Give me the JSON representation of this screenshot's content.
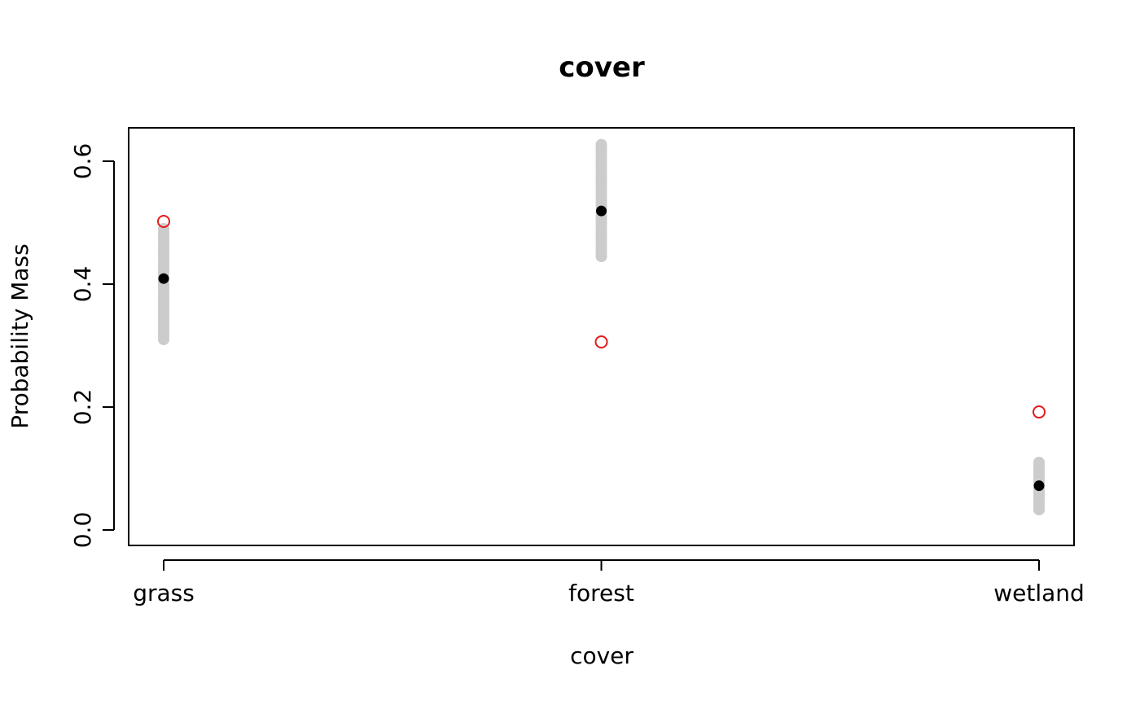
{
  "chart_data": {
    "type": "scatter",
    "title": "cover",
    "xlabel": "cover",
    "ylabel": "Probability Mass",
    "categories": [
      "grass",
      "forest",
      "wetland"
    ],
    "ylim": [
      0.0,
      0.65
    ],
    "yticks": [
      "0.0",
      "0.2",
      "0.4",
      "0.6"
    ],
    "grid": false,
    "legend": "none",
    "series": [
      {
        "role": "simulated",
        "color": "#cccccc",
        "ranges": [
          {
            "category": "grass",
            "min": 0.31,
            "max": 0.49
          },
          {
            "category": "forest",
            "min": 0.445,
            "max": 0.627
          },
          {
            "category": "wetland",
            "min": 0.033,
            "max": 0.11
          }
        ]
      },
      {
        "role": "mean",
        "color": "#000000",
        "values": [
          0.409,
          0.519,
          0.072
        ]
      },
      {
        "role": "observed",
        "color": "#e41a1c",
        "values": [
          0.502,
          0.306,
          0.192
        ]
      }
    ]
  }
}
